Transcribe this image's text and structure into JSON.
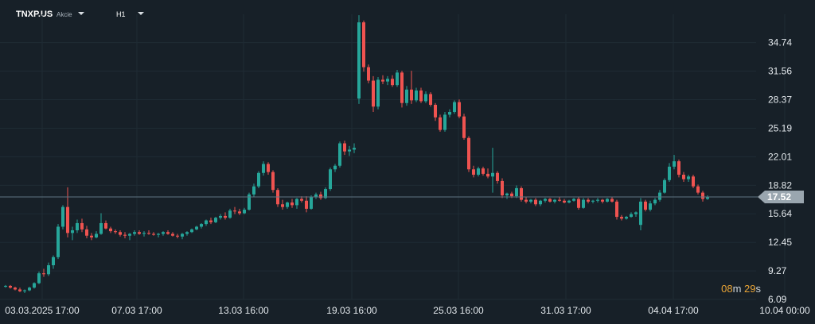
{
  "header": {
    "symbol": "TNXP.US",
    "type_label": "Akcie",
    "timeframe": "H1"
  },
  "chart_data": {
    "type": "candlestick",
    "ylim": [
      6.09,
      37.9
    ],
    "y_ticks": [
      "34.74",
      "31.56",
      "28.37",
      "25.19",
      "22.01",
      "18.82",
      "15.64",
      "12.45",
      "9.27",
      "6.09"
    ],
    "x_ticks": [
      "03.03.2025  17:00",
      "07.03  17:00",
      "13.03  16:00",
      "19.03  16:00",
      "25.03  16:00",
      "31.03  17:00",
      "04.04  17:00",
      "10.04  00:00"
    ],
    "current_price": "17.52",
    "colors": {
      "up": "#26a69a",
      "down": "#ef5350",
      "price_line": "#5f7482",
      "price_tag": "#9aa6af"
    },
    "countdown": {
      "minutes": "08",
      "minutes_unit": "m",
      "seconds": "29",
      "seconds_unit": "s"
    },
    "candles": [
      [
        7.5,
        7.7,
        7.4,
        7.6
      ],
      [
        7.6,
        7.7,
        7.3,
        7.4
      ],
      [
        7.4,
        7.5,
        7.1,
        7.2
      ],
      [
        7.2,
        7.4,
        6.9,
        7.0
      ],
      [
        7.0,
        7.2,
        6.8,
        7.1
      ],
      [
        7.1,
        7.5,
        7.0,
        7.4
      ],
      [
        7.4,
        8.0,
        7.3,
        7.9
      ],
      [
        7.9,
        9.2,
        7.8,
        9.0
      ],
      [
        9.0,
        9.5,
        8.6,
        8.9
      ],
      [
        8.9,
        10.2,
        8.7,
        9.9
      ],
      [
        9.9,
        11.0,
        9.5,
        10.8
      ],
      [
        10.8,
        14.5,
        10.6,
        14.2
      ],
      [
        14.2,
        16.6,
        13.9,
        16.4
      ],
      [
        16.4,
        18.6,
        13.0,
        13.5
      ],
      [
        13.5,
        14.2,
        12.7,
        13.8
      ],
      [
        13.8,
        15.0,
        13.5,
        14.6
      ],
      [
        14.6,
        15.1,
        13.6,
        13.9
      ],
      [
        13.9,
        14.3,
        12.9,
        13.2
      ],
      [
        13.2,
        13.5,
        12.7,
        13.0
      ],
      [
        13.0,
        13.7,
        12.9,
        13.4
      ],
      [
        13.4,
        15.7,
        13.3,
        14.6
      ],
      [
        14.6,
        14.9,
        13.9,
        14.0
      ],
      [
        14.0,
        14.2,
        13.5,
        13.7
      ],
      [
        13.7,
        13.9,
        13.4,
        13.6
      ],
      [
        13.6,
        13.8,
        13.1,
        13.3
      ],
      [
        13.3,
        13.6,
        12.9,
        13.2
      ],
      [
        13.2,
        13.5,
        12.7,
        13.4
      ],
      [
        13.4,
        13.8,
        13.2,
        13.6
      ],
      [
        13.6,
        13.8,
        13.3,
        13.4
      ],
      [
        13.4,
        13.7,
        13.1,
        13.5
      ],
      [
        13.5,
        13.8,
        13.3,
        13.4
      ],
      [
        13.4,
        13.6,
        13.2,
        13.3
      ],
      [
        13.3,
        13.5,
        13.0,
        13.4
      ],
      [
        13.4,
        13.7,
        13.2,
        13.6
      ],
      [
        13.6,
        13.8,
        13.3,
        13.4
      ],
      [
        13.4,
        13.6,
        13.1,
        13.2
      ],
      [
        13.2,
        13.4,
        12.9,
        13.1
      ],
      [
        13.1,
        13.5,
        12.8,
        13.4
      ],
      [
        13.4,
        13.7,
        13.2,
        13.6
      ],
      [
        13.6,
        14.0,
        13.5,
        13.9
      ],
      [
        13.9,
        14.3,
        13.8,
        14.2
      ],
      [
        14.2,
        14.6,
        14.0,
        14.5
      ],
      [
        14.5,
        15.0,
        14.3,
        14.9
      ],
      [
        14.9,
        15.2,
        14.5,
        14.7
      ],
      [
        14.7,
        15.3,
        14.6,
        15.2
      ],
      [
        15.2,
        15.6,
        15.0,
        15.4
      ],
      [
        15.4,
        15.8,
        15.0,
        15.2
      ],
      [
        15.2,
        16.2,
        15.1,
        16.0
      ],
      [
        16.0,
        16.4,
        15.6,
        15.9
      ],
      [
        15.9,
        16.2,
        15.5,
        15.7
      ],
      [
        15.7,
        16.3,
        15.6,
        16.1
      ],
      [
        16.1,
        18.0,
        16.0,
        17.8
      ],
      [
        17.8,
        19.0,
        17.5,
        18.7
      ],
      [
        18.7,
        20.4,
        18.5,
        20.2
      ],
      [
        20.2,
        21.5,
        19.9,
        21.2
      ],
      [
        21.2,
        21.4,
        20.0,
        20.3
      ],
      [
        20.3,
        20.5,
        18.0,
        18.3
      ],
      [
        18.3,
        18.5,
        16.4,
        16.7
      ],
      [
        16.7,
        17.2,
        16.1,
        16.4
      ],
      [
        16.4,
        17.0,
        16.2,
        16.9
      ],
      [
        16.9,
        17.3,
        16.3,
        16.6
      ],
      [
        16.6,
        17.4,
        16.2,
        17.3
      ],
      [
        17.3,
        17.6,
        16.9,
        17.1
      ],
      [
        17.1,
        17.6,
        15.8,
        16.2
      ],
      [
        16.2,
        17.7,
        16.1,
        17.5
      ],
      [
        17.5,
        18.0,
        17.3,
        17.8
      ],
      [
        17.8,
        18.1,
        17.2,
        17.4
      ],
      [
        17.4,
        18.6,
        17.3,
        18.4
      ],
      [
        18.4,
        20.8,
        18.2,
        20.6
      ],
      [
        20.6,
        21.2,
        20.3,
        21.0
      ],
      [
        21.0,
        23.7,
        20.8,
        23.5
      ],
      [
        23.5,
        23.8,
        22.2,
        22.6
      ],
      [
        22.6,
        23.2,
        22.1,
        22.8
      ],
      [
        22.8,
        23.5,
        22.4,
        23.0
      ],
      [
        28.5,
        37.8,
        27.9,
        37.0
      ],
      [
        37.0,
        37.2,
        31.5,
        32.0
      ],
      [
        32.0,
        32.3,
        30.2,
        30.5
      ],
      [
        30.5,
        31.0,
        27.0,
        27.6
      ],
      [
        27.6,
        30.9,
        27.3,
        30.6
      ],
      [
        30.6,
        31.1,
        30.1,
        30.4
      ],
      [
        30.4,
        31.0,
        30.0,
        30.7
      ],
      [
        30.7,
        31.1,
        29.8,
        30.0
      ],
      [
        30.0,
        31.7,
        29.8,
        31.4
      ],
      [
        31.4,
        31.6,
        27.5,
        28.0
      ],
      [
        28.0,
        29.9,
        27.7,
        29.5
      ],
      [
        29.5,
        31.6,
        27.9,
        28.3
      ],
      [
        28.3,
        29.7,
        28.1,
        29.4
      ],
      [
        29.4,
        29.7,
        28.0,
        28.2
      ],
      [
        28.2,
        29.3,
        28.0,
        29.0
      ],
      [
        29.0,
        29.2,
        27.6,
        27.8
      ],
      [
        27.8,
        28.0,
        26.0,
        26.4
      ],
      [
        26.4,
        26.7,
        24.8,
        25.0
      ],
      [
        25.0,
        27.0,
        24.8,
        26.7
      ],
      [
        26.7,
        27.3,
        26.4,
        27.0
      ],
      [
        27.0,
        28.3,
        26.8,
        28.1
      ],
      [
        28.1,
        28.4,
        26.3,
        26.5
      ],
      [
        26.5,
        26.8,
        23.9,
        24.1
      ],
      [
        24.1,
        24.3,
        20.3,
        20.6
      ],
      [
        20.6,
        21.0,
        19.7,
        20.0
      ],
      [
        20.0,
        20.9,
        19.8,
        20.7
      ],
      [
        20.7,
        20.9,
        19.9,
        20.1
      ],
      [
        20.1,
        20.7,
        19.6,
        19.8
      ],
      [
        19.8,
        23.0,
        18.0,
        20.2
      ],
      [
        20.2,
        20.4,
        19.0,
        19.3
      ],
      [
        19.3,
        19.6,
        17.4,
        17.7
      ],
      [
        17.7,
        18.0,
        17.3,
        17.9
      ],
      [
        17.9,
        18.1,
        17.4,
        17.6
      ],
      [
        17.6,
        18.8,
        17.4,
        18.5
      ],
      [
        18.5,
        18.7,
        17.0,
        17.2
      ],
      [
        17.2,
        17.5,
        16.8,
        17.0
      ],
      [
        17.0,
        17.3,
        16.8,
        17.2
      ],
      [
        17.2,
        17.4,
        16.5,
        16.7
      ],
      [
        16.7,
        17.2,
        16.5,
        17.1
      ],
      [
        17.1,
        17.4,
        16.9,
        17.3
      ],
      [
        17.3,
        17.4,
        16.9,
        17.0
      ],
      [
        17.0,
        17.3,
        16.8,
        17.2
      ],
      [
        17.2,
        17.5,
        17.0,
        17.1
      ],
      [
        17.1,
        17.3,
        16.8,
        16.9
      ],
      [
        16.9,
        17.2,
        16.8,
        17.1
      ],
      [
        17.1,
        17.4,
        17.0,
        17.3
      ],
      [
        17.3,
        17.5,
        16.1,
        16.3
      ],
      [
        16.3,
        17.4,
        16.2,
        17.2
      ],
      [
        17.2,
        17.4,
        16.8,
        17.0
      ],
      [
        17.0,
        17.2,
        16.8,
        17.1
      ],
      [
        17.1,
        17.4,
        16.9,
        17.2
      ],
      [
        17.2,
        17.3,
        16.8,
        17.0
      ],
      [
        17.0,
        17.4,
        16.9,
        17.3
      ],
      [
        17.3,
        17.5,
        16.9,
        17.0
      ],
      [
        17.0,
        17.2,
        15.0,
        15.3
      ],
      [
        15.3,
        15.5,
        14.9,
        15.1
      ],
      [
        15.1,
        15.4,
        15.0,
        15.3
      ],
      [
        15.3,
        15.8,
        15.2,
        15.6
      ],
      [
        15.6,
        15.9,
        15.3,
        15.8
      ],
      [
        14.4,
        17.4,
        13.8,
        17.0
      ],
      [
        17.0,
        17.2,
        15.9,
        16.1
      ],
      [
        16.1,
        17.1,
        15.9,
        16.8
      ],
      [
        16.8,
        17.4,
        16.6,
        17.2
      ],
      [
        17.2,
        18.3,
        17.0,
        18.0
      ],
      [
        18.0,
        19.6,
        17.9,
        19.4
      ],
      [
        19.4,
        21.3,
        19.2,
        20.9
      ],
      [
        20.9,
        22.2,
        20.6,
        21.5
      ],
      [
        21.5,
        21.7,
        19.7,
        20.0
      ],
      [
        20.0,
        20.3,
        19.2,
        19.5
      ],
      [
        19.5,
        20.0,
        19.2,
        19.8
      ],
      [
        19.8,
        20.0,
        18.5,
        18.7
      ],
      [
        18.7,
        18.9,
        17.8,
        18.0
      ],
      [
        18.0,
        18.2,
        17.0,
        17.3
      ],
      [
        17.3,
        17.7,
        17.2,
        17.5
      ]
    ]
  }
}
